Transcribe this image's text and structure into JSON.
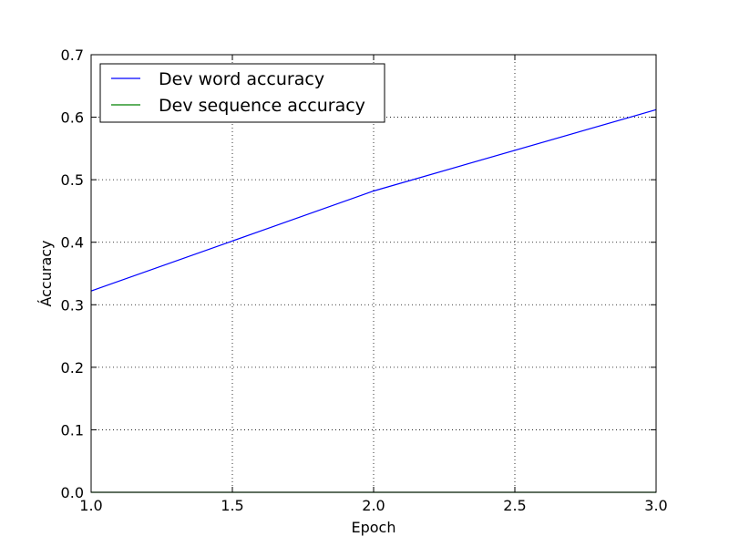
{
  "chart_data": {
    "type": "line",
    "xlabel": "Epoch",
    "ylabel": "Áccuracy",
    "xlim": [
      1.0,
      3.0
    ],
    "ylim": [
      0.0,
      0.7
    ],
    "x_ticks": [
      "1.0",
      "1.5",
      "2.0",
      "2.5",
      "3.0"
    ],
    "y_ticks": [
      "0.0",
      "0.1",
      "0.2",
      "0.3",
      "0.4",
      "0.5",
      "0.6",
      "0.7"
    ],
    "grid": true,
    "legend_position": "top-left",
    "x": [
      1,
      2,
      3
    ],
    "series": [
      {
        "name": "Dev word accuracy",
        "color": "#0000ff",
        "values": [
          0.322,
          0.482,
          0.612
        ]
      },
      {
        "name": "Dev sequence accuracy",
        "color": "#008000",
        "values": [
          0.0,
          0.0,
          0.0
        ]
      }
    ]
  }
}
